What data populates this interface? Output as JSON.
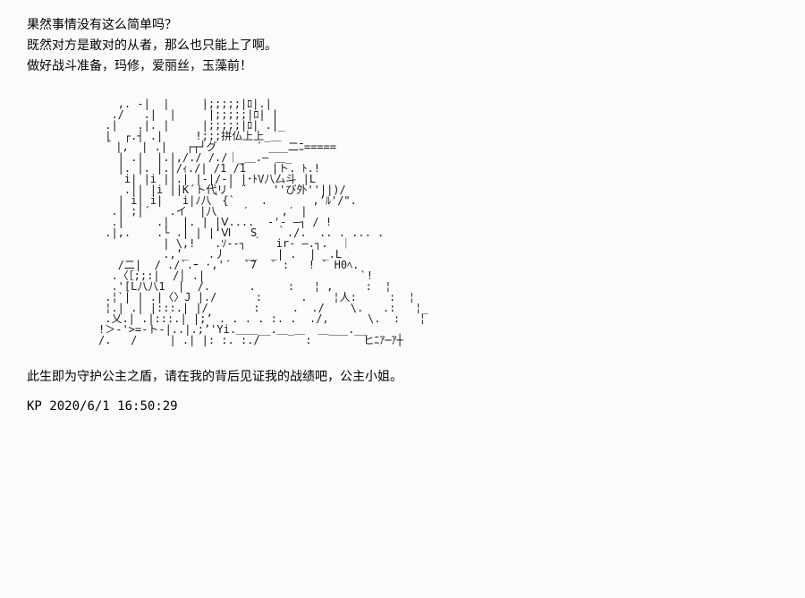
{
  "dialogue": {
    "line1": "果然事情没有这么简单吗？",
    "line2": "既然对方是敢对的从者，那么也只能上了啊。",
    "line3": "做好战斗准备，玛修，爱丽丝，玉藻前！"
  },
  "ascii_art": "   ,. -|  |     |;;;;;|ﾛ|.|\n  ./   .|  |     |;;;;;|ﾛ| |\n .|   .|. |     |;;;;;|ﾛ| .|_\n |  ┌.┤ .|     !;;;拼仏上上_＿\n ｀|,  | .|   ┌┬┘グ      ´ ___二ﾆ=====\n   | .|  |.|,/./ /./｜_＿.― ＿_\n   |. |. |.|/ｨ./| /1 /1    |ト. ﾄ.!\n    i| |i ||.| |-|/‐| |･ﾄV八厶斗 |L\n    .|| |i ||K´ト代リ' ¨    ''び外''||)/\n   | i| i|   i|ﾉ八｀{`    .       ,’ﾙ'/\".\n  .| ;|´   .イ  |八    ′     ,′ |\n  .|     .|  |. | |Ⅴ....  -'‐ ―┐ / !\n .|,.    .└ .| | |‘Ⅵ   S   ｀./.  .. . ... .\n          | \\,!   .ｿ--┐ ｀  ir- ―.┐.  ｜\n          .,’_   .丿   __  _| .  | _.L\n   /二|  / ./`.ｰ ·,'´  `7  ´ :   ! ` H0ﾍ.\n  .〈［;;:|  /│ .|                        `!\n  .'[L八八1  |  /.      .     :   ¦ ,     :  ¦\n .¦`| | .|〈〉J |./      :      .    ¦人:     :  ¦\n ¦.| .| |:::.| |/       :     .  ./    \\.   .:   ¦_\n .乂.| .|:::.| |;’ . . . . :. .  ./,      \\.  :   ¦\n!＞-'>=-ト-|..|.;’'Yi.＿＿__.＿_＿  ＿___.__\n/.   /     | .| |: :. :./       :        ヒﾆｱ─ｱ┼",
  "bottom_dialogue": "此生即为守护公主之盾，请在我的背后见证我的战绩吧，公主小姐。",
  "signature": {
    "author": "KP",
    "date": "2020/6/1",
    "time": "16:50:29"
  },
  "colors": {
    "background": "#fbfbfc",
    "text": "#000000"
  },
  "typography": {
    "body_fontsize": 14,
    "ascii_fontsize": 12
  }
}
